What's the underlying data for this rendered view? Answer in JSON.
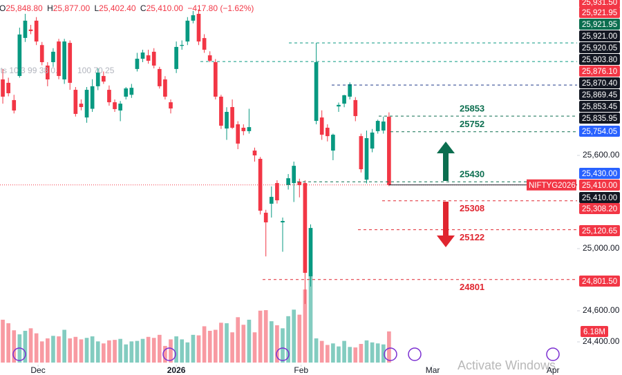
{
  "chart_data": {
    "type": "candlestick",
    "header": {
      "o": "O",
      "open": "25,848.80",
      "h": "H",
      "high": "25,877.00",
      "l": "L",
      "low": "25,402.40",
      "c": "C",
      "close": "25,410.00",
      "change": "−417.80 (−1.62%)"
    },
    "indicator_text": [
      "its 10 3 99 38 0.",
      "100 70 25"
    ],
    "symbol": "NIFTYG2026",
    "watermark": "Activate Windows",
    "xlim": [
      -0.5,
      102.6
    ],
    "ylim": [
      24289,
      26600
    ],
    "yticks": [
      {
        "value": 25600,
        "label": "25,600.00"
      },
      {
        "value": 25000,
        "label": "25,000.00"
      },
      {
        "value": 24600,
        "label": "24,600.00"
      },
      {
        "value": 24400,
        "label": "24,400.00"
      }
    ],
    "xticks": [
      {
        "value": 6.3,
        "label": "Dec"
      },
      {
        "value": 31,
        "label": "2026"
      },
      {
        "value": 53.3,
        "label": "Feb"
      },
      {
        "value": 76.8,
        "label": "Mar"
      },
      {
        "value": 98.3,
        "label": "Apr"
      }
    ],
    "up_color": "#089981",
    "down_color": "#f23645",
    "open": [
      26089,
      26067,
      25956,
      26111,
      26356,
      26410,
      26467,
      26310,
      26178,
      26200,
      26333,
      26089,
      26324,
      26022,
      25933,
      25844,
      25900,
      26045,
      26111,
      26022,
      25942,
      25889,
      25978,
      25990,
      26156,
      26222,
      26244,
      26267,
      26156,
      26089,
      25942,
      26156,
      26305,
      26333,
      26467,
      26511,
      26355,
      26244,
      26200,
      25978,
      25773,
      25911,
      25800,
      25778,
      25756,
      25631,
      25578,
      25231,
      25289,
      25422,
      25169,
      25409,
      25422,
      25431,
      25422,
      24822,
      25822,
      25844,
      25778,
      25631,
      25915,
      25933,
      25978,
      25956,
      25724,
      25444,
      25644,
      25756,
      25760,
      25848.8
    ],
    "high": [
      26156,
      26100,
      25990,
      26422,
      26511,
      26440,
      26490,
      26330,
      26200,
      26290,
      26350,
      26350,
      26340,
      26040,
      25960,
      26040,
      26090,
      26160,
      26140,
      26050,
      25960,
      25950,
      26040,
      26060,
      26260,
      26280,
      26280,
      26290,
      26170,
      26110,
      25960,
      26333,
      26340,
      26490,
      26530,
      26540,
      26380,
      26270,
      26220,
      25990,
      25910,
      25960,
      25820,
      25800,
      25900,
      25650,
      25590,
      25250,
      25400,
      25440,
      25200,
      25480,
      25560,
      25450,
      25440,
      25156,
      26324,
      25890,
      25800,
      25740,
      25940,
      25990,
      26070,
      25975,
      25740,
      25760,
      25770,
      25830,
      25850,
      25877
    ],
    "low": [
      25933,
      25980,
      25870,
      26100,
      26330,
      26380,
      26310,
      26180,
      26045,
      26170,
      26090,
      26060,
      26022,
      25850,
      25890,
      25810,
      25880,
      26020,
      26060,
      25920,
      25880,
      25820,
      25960,
      25970,
      26140,
      26200,
      26190,
      26160,
      26030,
      25960,
      25870,
      26130,
      26280,
      26310,
      26450,
      26310,
      26260,
      26200,
      25960,
      25770,
      25700,
      25770,
      25640,
      25730,
      25740,
      25560,
      25220,
      24950,
      25200,
      25290,
      24980,
      25380,
      25300,
      25330,
      24644,
      24756,
      25800,
      25700,
      25690,
      25569,
      25880,
      25910,
      25960,
      25820,
      25490,
      25420,
      25620,
      25740,
      25740,
      25402.4
    ],
    "close": [
      25978,
      26000,
      25889,
      26378,
      26467,
      26400,
      26333,
      26200,
      26089,
      26267,
      26111,
      26333,
      26067,
      25867,
      25911,
      26022,
      26045,
      26133,
      26075,
      25942,
      25898,
      25933,
      26031,
      26035,
      26222,
      26262,
      26209,
      26178,
      26045,
      25978,
      25902,
      26298,
      26311,
      26467,
      26502,
      26333,
      26280,
      26209,
      25978,
      25791,
      25880,
      25778,
      25676,
      25756,
      25782,
      25600,
      25244,
      25169,
      25333,
      25311,
      25178,
      25453,
      25533,
      25409,
      24844,
      25133,
      26200,
      25733,
      25724,
      25733,
      25925,
      25987,
      26058,
      25853,
      25511,
      25711,
      25747,
      25822,
      25818,
      25410
    ],
    "volume_ylim": [
      0,
      20
    ],
    "volume": [
      8.5,
      7.8,
      6.4,
      5.6,
      6.3,
      6.8,
      5.8,
      4.2,
      4.8,
      5.3,
      5.2,
      6.5,
      4.8,
      5.1,
      4.6,
      4.9,
      5.2,
      4.2,
      3.8,
      4.4,
      4.5,
      4.7,
      3.6,
      4.2,
      4.3,
      4.7,
      5.1,
      4.9,
      5.5,
      3.3,
      4.6,
      5.2,
      4.6,
      4.0,
      5.5,
      5.4,
      7.2,
      6.3,
      6.5,
      7.9,
      7.8,
      6.0,
      9.0,
      7.5,
      8.5,
      6.0,
      10.3,
      10.4,
      8.2,
      7.4,
      6.8,
      9.2,
      10.5,
      9.5,
      14.5,
      18.0,
      4.8,
      4.3,
      3.5,
      3.8,
      3.2,
      4.3,
      3.1,
      3.0,
      3.7,
      4.4,
      4.0,
      3.8,
      3.6,
      6.18
    ],
    "lines": [
      {
        "value": 26324,
        "color": "#089981"
      },
      {
        "value": 26204,
        "color": "#089981"
      },
      {
        "value": 26053,
        "color": "#1e3a8a"
      }
    ],
    "levels": [
      {
        "value": 25853,
        "color": "#0b6e4f"
      },
      {
        "value": 25752,
        "color": "#0b6e4f"
      },
      {
        "value": 25430,
        "color": "#0b6e4f"
      },
      {
        "value": 25308,
        "color": "#e0252f"
      },
      {
        "value": 25122,
        "color": "#e0252f"
      },
      {
        "value": 24801,
        "color": "#e0252f"
      }
    ],
    "price_labels": [
      {
        "label": "25,931.50",
        "color": "#f23645"
      },
      {
        "label": "25,921.95",
        "color": "#f23645"
      },
      {
        "label": "25,921.95",
        "color": "#0b6e4f"
      },
      {
        "label": "25,921.00",
        "color": "#131722"
      },
      {
        "label": "25,920.05",
        "color": "#131722"
      },
      {
        "label": "25,903.80",
        "color": "#131722"
      },
      {
        "label": "25,876.10",
        "color": "#f23645"
      },
      {
        "label": "25,870.40",
        "color": "#131722"
      },
      {
        "label": "25,869.45",
        "color": "#131722"
      },
      {
        "label": "25,853.45",
        "color": "#131722"
      },
      {
        "label": "25,835.95",
        "color": "#131722"
      },
      {
        "label": "25,754.05",
        "color": "#2962ff"
      },
      {
        "label": "25,430.00",
        "color": "#2962ff"
      },
      {
        "label": "25,410.00",
        "color": "#f23645"
      },
      {
        "label": "25,410.00",
        "color": "#131722"
      },
      {
        "label": "25,308.20",
        "color": "#f23645"
      },
      {
        "label": "25,120.65",
        "color": "#f23645"
      },
      {
        "label": "24,801.50",
        "color": "#f23645"
      },
      {
        "label": "6.18M",
        "color": "#f23645"
      }
    ]
  }
}
